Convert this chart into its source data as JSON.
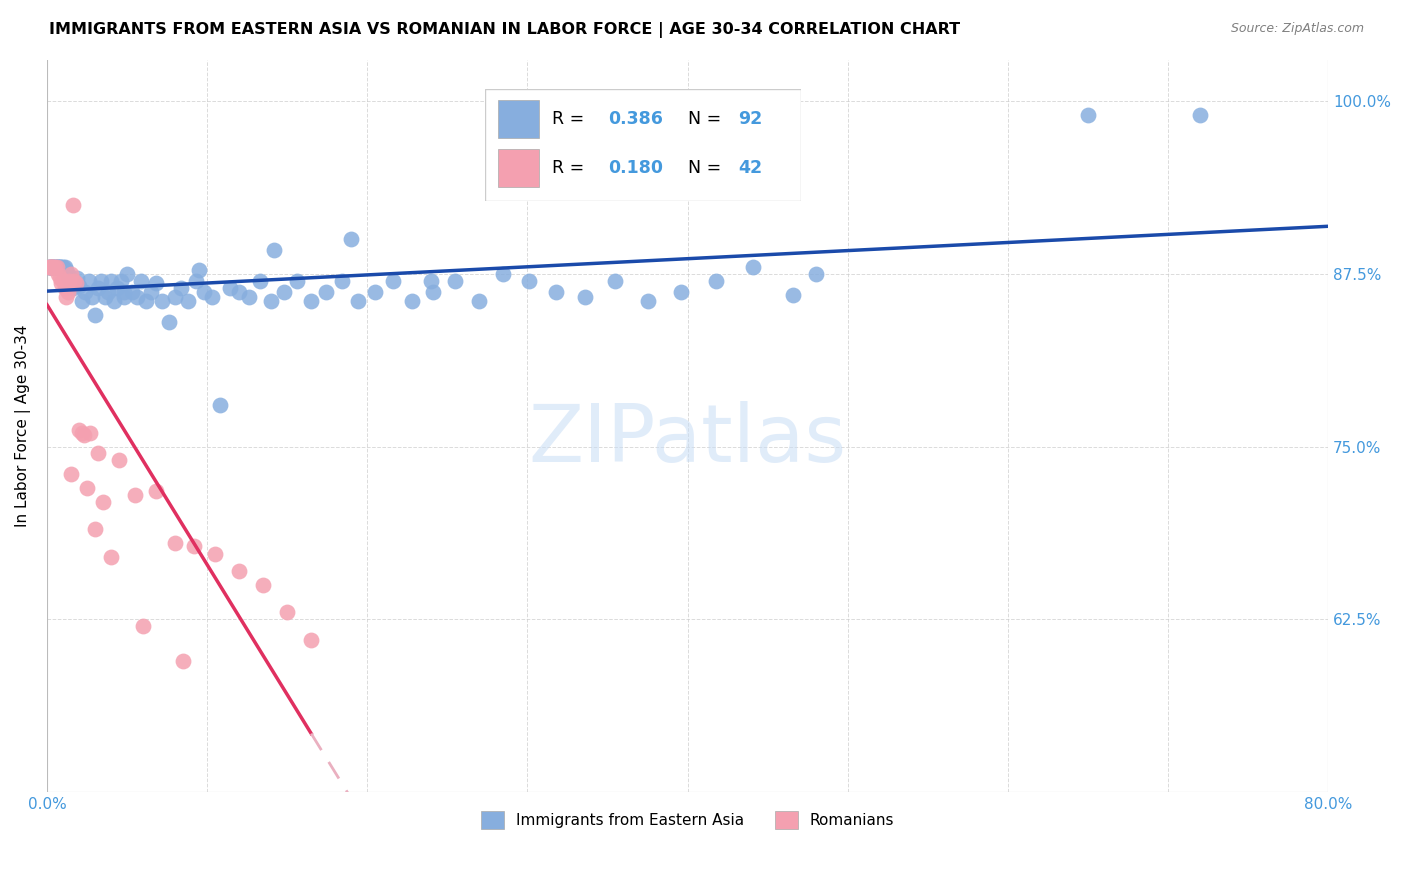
{
  "title": "IMMIGRANTS FROM EASTERN ASIA VS ROMANIAN IN LABOR FORCE | AGE 30-34 CORRELATION CHART",
  "source": "Source: ZipAtlas.com",
  "ylabel": "In Labor Force | Age 30-34",
  "xlim": [
    0.0,
    0.8
  ],
  "ylim": [
    0.5,
    1.03
  ],
  "yticks": [
    0.625,
    0.75,
    0.875,
    1.0
  ],
  "ytick_labels": [
    "62.5%",
    "75.0%",
    "87.5%",
    "100.0%"
  ],
  "xticks": [
    0.0,
    0.1,
    0.2,
    0.3,
    0.4,
    0.5,
    0.6,
    0.7,
    0.8
  ],
  "xtick_labels": [
    "0.0%",
    "",
    "",
    "",
    "",
    "",
    "",
    "",
    "80.0%"
  ],
  "r_blue": 0.386,
  "n_blue": 92,
  "r_pink": 0.18,
  "n_pink": 42,
  "blue_color": "#87AEDE",
  "pink_color": "#F4A0B0",
  "trend_blue_color": "#1A4AAA",
  "trend_pink_color": "#E03060",
  "trend_pink_dash_color": "#EAB0C0",
  "axis_color": "#4499DD",
  "blue_x": [
    0.001,
    0.002,
    0.002,
    0.003,
    0.003,
    0.004,
    0.004,
    0.005,
    0.005,
    0.006,
    0.006,
    0.007,
    0.007,
    0.008,
    0.008,
    0.009,
    0.01,
    0.011,
    0.012,
    0.013,
    0.014,
    0.015,
    0.016,
    0.017,
    0.018,
    0.019,
    0.02,
    0.022,
    0.024,
    0.026,
    0.028,
    0.03,
    0.032,
    0.034,
    0.036,
    0.038,
    0.04,
    0.042,
    0.044,
    0.046,
    0.048,
    0.05,
    0.053,
    0.056,
    0.059,
    0.062,
    0.065,
    0.068,
    0.072,
    0.076,
    0.08,
    0.084,
    0.088,
    0.093,
    0.098,
    0.103,
    0.108,
    0.114,
    0.12,
    0.126,
    0.133,
    0.14,
    0.148,
    0.156,
    0.165,
    0.174,
    0.184,
    0.194,
    0.205,
    0.216,
    0.228,
    0.241,
    0.255,
    0.27,
    0.285,
    0.301,
    0.318,
    0.336,
    0.355,
    0.375,
    0.396,
    0.418,
    0.441,
    0.466,
    0.048,
    0.095,
    0.142,
    0.19,
    0.24,
    0.48,
    0.65,
    0.72
  ],
  "blue_y": [
    0.88,
    0.88,
    0.88,
    0.88,
    0.88,
    0.88,
    0.88,
    0.88,
    0.88,
    0.88,
    0.88,
    0.88,
    0.88,
    0.88,
    0.88,
    0.88,
    0.88,
    0.88,
    0.878,
    0.875,
    0.872,
    0.868,
    0.865,
    0.87,
    0.868,
    0.872,
    0.866,
    0.855,
    0.862,
    0.87,
    0.858,
    0.845,
    0.865,
    0.87,
    0.858,
    0.862,
    0.87,
    0.855,
    0.865,
    0.87,
    0.858,
    0.875,
    0.862,
    0.858,
    0.87,
    0.855,
    0.862,
    0.868,
    0.855,
    0.84,
    0.858,
    0.865,
    0.855,
    0.87,
    0.862,
    0.858,
    0.78,
    0.865,
    0.862,
    0.858,
    0.87,
    0.855,
    0.862,
    0.87,
    0.855,
    0.862,
    0.87,
    0.855,
    0.862,
    0.87,
    0.855,
    0.862,
    0.87,
    0.855,
    0.875,
    0.87,
    0.862,
    0.858,
    0.87,
    0.855,
    0.862,
    0.87,
    0.88,
    0.86,
    0.862,
    0.878,
    0.892,
    0.9,
    0.87,
    0.875,
    0.99,
    0.99
  ],
  "pink_x": [
    0.001,
    0.002,
    0.002,
    0.003,
    0.003,
    0.004,
    0.005,
    0.006,
    0.007,
    0.008,
    0.009,
    0.01,
    0.011,
    0.012,
    0.013,
    0.014,
    0.015,
    0.016,
    0.017,
    0.018,
    0.02,
    0.023,
    0.027,
    0.032,
    0.015,
    0.025,
    0.035,
    0.045,
    0.055,
    0.068,
    0.08,
    0.092,
    0.105,
    0.12,
    0.135,
    0.15,
    0.165,
    0.022,
    0.03,
    0.04,
    0.06,
    0.085
  ],
  "pink_y": [
    0.88,
    0.88,
    0.88,
    0.88,
    0.88,
    0.88,
    0.88,
    0.88,
    0.875,
    0.872,
    0.868,
    0.87,
    0.865,
    0.858,
    0.862,
    0.87,
    0.875,
    0.925,
    0.87,
    0.868,
    0.762,
    0.758,
    0.76,
    0.745,
    0.73,
    0.72,
    0.71,
    0.74,
    0.715,
    0.718,
    0.68,
    0.678,
    0.672,
    0.66,
    0.65,
    0.63,
    0.61,
    0.76,
    0.69,
    0.67,
    0.62,
    0.595
  ]
}
